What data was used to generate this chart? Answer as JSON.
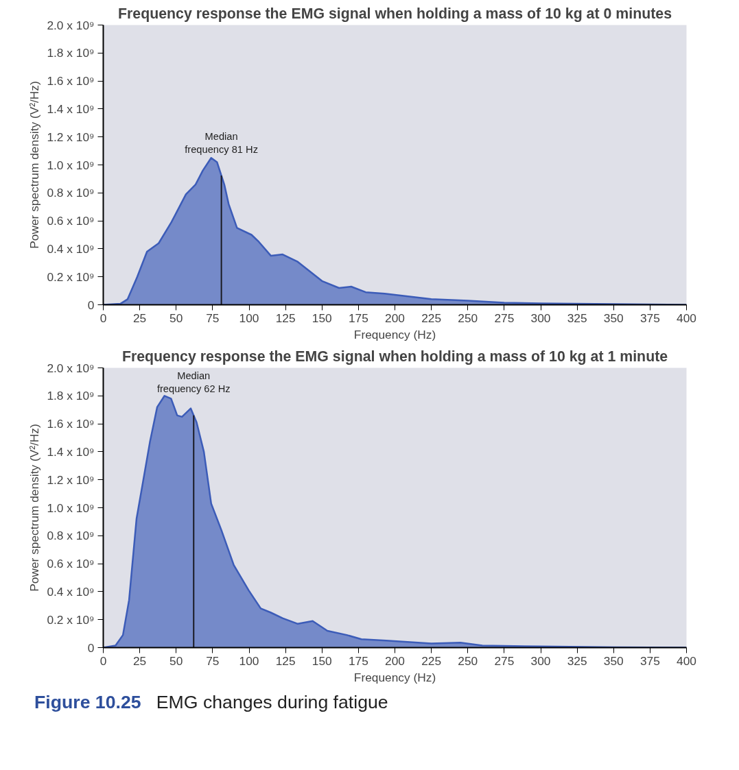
{
  "chart_data": [
    {
      "type": "area",
      "title": "Frequency response the EMG signal when holding a mass of 10 kg at 0 minutes",
      "xlabel": "Frequency (Hz)",
      "ylabel": "Power spectrum density (V²/Hz)",
      "x": [
        0,
        11.7,
        16.7,
        23.3,
        30,
        38,
        46.7,
        56.7,
        63.3,
        68.3,
        74,
        78,
        83,
        86,
        91.7,
        101.7,
        106.7,
        115,
        123,
        133,
        150,
        161.7,
        170,
        180,
        193,
        225,
        250,
        275,
        300,
        350,
        400
      ],
      "series": [
        {
          "color": "#3c5cb8",
          "values": [
            0,
            7000000.0,
            40000000.0,
            200000000.0,
            380000000.0,
            440000000.0,
            590000000.0,
            790000000.0,
            860000000.0,
            960000000.0,
            1050000000.0,
            1020000000.0,
            860000000.0,
            720000000.0,
            550000000.0,
            500000000.0,
            450000000.0,
            350000000.0,
            360000000.0,
            310000000.0,
            170000000.0,
            120000000.0,
            130000000.0,
            90000000.0,
            80000000.0,
            40000000.0,
            30000000.0,
            15000000.0,
            10000000.0,
            5000000.0,
            0
          ]
        }
      ],
      "ref_lines": [
        {
          "axis": "x",
          "value": 81,
          "label": "Median\nfrequency 81 Hz",
          "color": "#1a1a22"
        }
      ],
      "xlim": [
        0,
        400
      ],
      "ylim": [
        0,
        2000000000.0
      ],
      "xticks": [
        0,
        25,
        50,
        75,
        100,
        125,
        150,
        175,
        200,
        225,
        250,
        275,
        300,
        325,
        350,
        375,
        400
      ],
      "yticks": [
        0,
        {
          "value": 200000000.0,
          "label": "0.2 x 10⁹"
        },
        {
          "value": 400000000.0,
          "label": "0.4 x 10⁹"
        },
        {
          "value": 600000000.0,
          "label": "0.6 x 10⁹"
        },
        {
          "value": 800000000.0,
          "label": "0.8 x 10⁹"
        },
        {
          "value": 1000000000.0,
          "label": "1.0 x 10⁹"
        },
        {
          "value": 1200000000.0,
          "label": "1.2 x 10⁹"
        },
        {
          "value": 1400000000.0,
          "label": "1.4 x 10⁹"
        },
        {
          "value": 1600000000.0,
          "label": "1.6 x 10⁹"
        },
        {
          "value": 1800000000.0,
          "label": "1.8 x 10⁹"
        },
        {
          "value": 2000000000.0,
          "label": "2.0 x 10⁹"
        }
      ]
    },
    {
      "type": "area",
      "title": "Frequency response the EMG signal when holding a mass of 10 kg at 1 minute",
      "xlabel": "Frequency (Hz)",
      "ylabel": "Power spectrum density (V²/Hz)",
      "x": [
        0,
        8.4,
        13.5,
        17.7,
        22.8,
        27,
        32,
        37,
        42,
        46.5,
        50.7,
        54,
        60,
        64,
        69,
        74,
        81,
        89.5,
        99.7,
        108,
        115,
        123,
        133.4,
        143.6,
        153.7,
        167,
        177,
        194,
        225,
        245,
        260,
        300,
        350,
        400
      ],
      "series": [
        {
          "color": "#3c5cb8",
          "values": [
            0,
            15000000.0,
            90000000.0,
            340000000.0,
            920000000.0,
            1170000000.0,
            1470000000.0,
            1720000000.0,
            1800000000.0,
            1780000000.0,
            1660000000.0,
            1650000000.0,
            1710000000.0,
            1610000000.0,
            1400000000.0,
            1030000000.0,
            840000000.0,
            590000000.0,
            410000000.0,
            280000000.0,
            250000000.0,
            210000000.0,
            170000000.0,
            190000000.0,
            120000000.0,
            90000000.0,
            60000000.0,
            50000000.0,
            30000000.0,
            35000000.0,
            15000000.0,
            8000000.0,
            3000000.0,
            0
          ]
        }
      ],
      "ref_lines": [
        {
          "axis": "x",
          "value": 62,
          "label": "Median\nfrequency 62 Hz",
          "color": "#1a1a22"
        }
      ],
      "xlim": [
        0,
        400
      ],
      "ylim": [
        0,
        2000000000.0
      ],
      "xticks": [
        0,
        25,
        50,
        75,
        100,
        125,
        150,
        175,
        200,
        225,
        250,
        275,
        300,
        325,
        350,
        375,
        400
      ],
      "yticks": [
        0,
        {
          "value": 200000000.0,
          "label": "0.2 x 10⁹"
        },
        {
          "value": 400000000.0,
          "label": "0.4 x 10⁹"
        },
        {
          "value": 600000000.0,
          "label": "0.6 x 10⁹"
        },
        {
          "value": 800000000.0,
          "label": "0.8 x 10⁹"
        },
        {
          "value": 1000000000.0,
          "label": "1.0 x 10⁹"
        },
        {
          "value": 1200000000.0,
          "label": "1.2 x 10⁹"
        },
        {
          "value": 1400000000.0,
          "label": "1.4 x 10⁹"
        },
        {
          "value": 1600000000.0,
          "label": "1.6 x 10⁹"
        },
        {
          "value": 1800000000.0,
          "label": "1.8 x 10⁹"
        },
        {
          "value": 2000000000.0,
          "label": "2.0 x 10⁹"
        }
      ],
      "annotations": [
        "Figure 10.25",
        "EMG changes during fatigue"
      ]
    }
  ]
}
